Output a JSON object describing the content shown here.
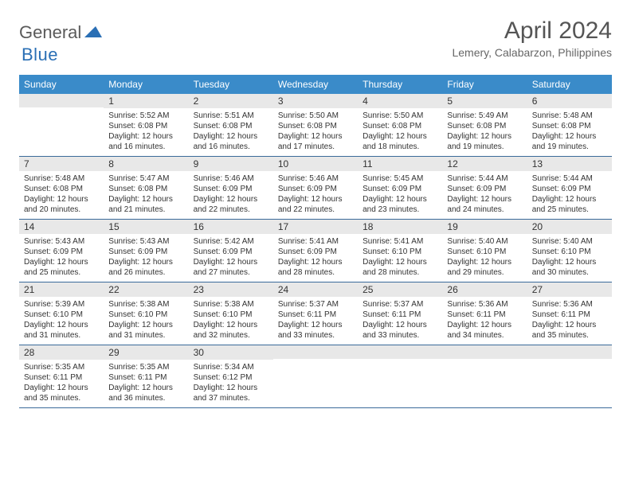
{
  "logo": {
    "part1": "General",
    "part2": "Blue"
  },
  "title": "April 2024",
  "location": "Lemery, Calabarzon, Philippines",
  "colors": {
    "header_bg": "#3a8bc9",
    "header_text": "#ffffff",
    "daynum_bg": "#e8e8e8",
    "week_border": "#3a6a9a",
    "logo_gray": "#5a5a5a",
    "logo_blue": "#2a6fb5",
    "title_color": "#555555",
    "location_color": "#666666",
    "body_text": "#333333",
    "background": "#ffffff"
  },
  "day_names": [
    "Sunday",
    "Monday",
    "Tuesday",
    "Wednesday",
    "Thursday",
    "Friday",
    "Saturday"
  ],
  "weeks": [
    [
      {
        "n": "",
        "sr": "",
        "ss": "",
        "dl": ""
      },
      {
        "n": "1",
        "sr": "Sunrise: 5:52 AM",
        "ss": "Sunset: 6:08 PM",
        "dl": "Daylight: 12 hours and 16 minutes."
      },
      {
        "n": "2",
        "sr": "Sunrise: 5:51 AM",
        "ss": "Sunset: 6:08 PM",
        "dl": "Daylight: 12 hours and 16 minutes."
      },
      {
        "n": "3",
        "sr": "Sunrise: 5:50 AM",
        "ss": "Sunset: 6:08 PM",
        "dl": "Daylight: 12 hours and 17 minutes."
      },
      {
        "n": "4",
        "sr": "Sunrise: 5:50 AM",
        "ss": "Sunset: 6:08 PM",
        "dl": "Daylight: 12 hours and 18 minutes."
      },
      {
        "n": "5",
        "sr": "Sunrise: 5:49 AM",
        "ss": "Sunset: 6:08 PM",
        "dl": "Daylight: 12 hours and 19 minutes."
      },
      {
        "n": "6",
        "sr": "Sunrise: 5:48 AM",
        "ss": "Sunset: 6:08 PM",
        "dl": "Daylight: 12 hours and 19 minutes."
      }
    ],
    [
      {
        "n": "7",
        "sr": "Sunrise: 5:48 AM",
        "ss": "Sunset: 6:08 PM",
        "dl": "Daylight: 12 hours and 20 minutes."
      },
      {
        "n": "8",
        "sr": "Sunrise: 5:47 AM",
        "ss": "Sunset: 6:08 PM",
        "dl": "Daylight: 12 hours and 21 minutes."
      },
      {
        "n": "9",
        "sr": "Sunrise: 5:46 AM",
        "ss": "Sunset: 6:09 PM",
        "dl": "Daylight: 12 hours and 22 minutes."
      },
      {
        "n": "10",
        "sr": "Sunrise: 5:46 AM",
        "ss": "Sunset: 6:09 PM",
        "dl": "Daylight: 12 hours and 22 minutes."
      },
      {
        "n": "11",
        "sr": "Sunrise: 5:45 AM",
        "ss": "Sunset: 6:09 PM",
        "dl": "Daylight: 12 hours and 23 minutes."
      },
      {
        "n": "12",
        "sr": "Sunrise: 5:44 AM",
        "ss": "Sunset: 6:09 PM",
        "dl": "Daylight: 12 hours and 24 minutes."
      },
      {
        "n": "13",
        "sr": "Sunrise: 5:44 AM",
        "ss": "Sunset: 6:09 PM",
        "dl": "Daylight: 12 hours and 25 minutes."
      }
    ],
    [
      {
        "n": "14",
        "sr": "Sunrise: 5:43 AM",
        "ss": "Sunset: 6:09 PM",
        "dl": "Daylight: 12 hours and 25 minutes."
      },
      {
        "n": "15",
        "sr": "Sunrise: 5:43 AM",
        "ss": "Sunset: 6:09 PM",
        "dl": "Daylight: 12 hours and 26 minutes."
      },
      {
        "n": "16",
        "sr": "Sunrise: 5:42 AM",
        "ss": "Sunset: 6:09 PM",
        "dl": "Daylight: 12 hours and 27 minutes."
      },
      {
        "n": "17",
        "sr": "Sunrise: 5:41 AM",
        "ss": "Sunset: 6:09 PM",
        "dl": "Daylight: 12 hours and 28 minutes."
      },
      {
        "n": "18",
        "sr": "Sunrise: 5:41 AM",
        "ss": "Sunset: 6:10 PM",
        "dl": "Daylight: 12 hours and 28 minutes."
      },
      {
        "n": "19",
        "sr": "Sunrise: 5:40 AM",
        "ss": "Sunset: 6:10 PM",
        "dl": "Daylight: 12 hours and 29 minutes."
      },
      {
        "n": "20",
        "sr": "Sunrise: 5:40 AM",
        "ss": "Sunset: 6:10 PM",
        "dl": "Daylight: 12 hours and 30 minutes."
      }
    ],
    [
      {
        "n": "21",
        "sr": "Sunrise: 5:39 AM",
        "ss": "Sunset: 6:10 PM",
        "dl": "Daylight: 12 hours and 31 minutes."
      },
      {
        "n": "22",
        "sr": "Sunrise: 5:38 AM",
        "ss": "Sunset: 6:10 PM",
        "dl": "Daylight: 12 hours and 31 minutes."
      },
      {
        "n": "23",
        "sr": "Sunrise: 5:38 AM",
        "ss": "Sunset: 6:10 PM",
        "dl": "Daylight: 12 hours and 32 minutes."
      },
      {
        "n": "24",
        "sr": "Sunrise: 5:37 AM",
        "ss": "Sunset: 6:11 PM",
        "dl": "Daylight: 12 hours and 33 minutes."
      },
      {
        "n": "25",
        "sr": "Sunrise: 5:37 AM",
        "ss": "Sunset: 6:11 PM",
        "dl": "Daylight: 12 hours and 33 minutes."
      },
      {
        "n": "26",
        "sr": "Sunrise: 5:36 AM",
        "ss": "Sunset: 6:11 PM",
        "dl": "Daylight: 12 hours and 34 minutes."
      },
      {
        "n": "27",
        "sr": "Sunrise: 5:36 AM",
        "ss": "Sunset: 6:11 PM",
        "dl": "Daylight: 12 hours and 35 minutes."
      }
    ],
    [
      {
        "n": "28",
        "sr": "Sunrise: 5:35 AM",
        "ss": "Sunset: 6:11 PM",
        "dl": "Daylight: 12 hours and 35 minutes."
      },
      {
        "n": "29",
        "sr": "Sunrise: 5:35 AM",
        "ss": "Sunset: 6:11 PM",
        "dl": "Daylight: 12 hours and 36 minutes."
      },
      {
        "n": "30",
        "sr": "Sunrise: 5:34 AM",
        "ss": "Sunset: 6:12 PM",
        "dl": "Daylight: 12 hours and 37 minutes."
      },
      {
        "n": "",
        "sr": "",
        "ss": "",
        "dl": ""
      },
      {
        "n": "",
        "sr": "",
        "ss": "",
        "dl": ""
      },
      {
        "n": "",
        "sr": "",
        "ss": "",
        "dl": ""
      },
      {
        "n": "",
        "sr": "",
        "ss": "",
        "dl": ""
      }
    ]
  ]
}
